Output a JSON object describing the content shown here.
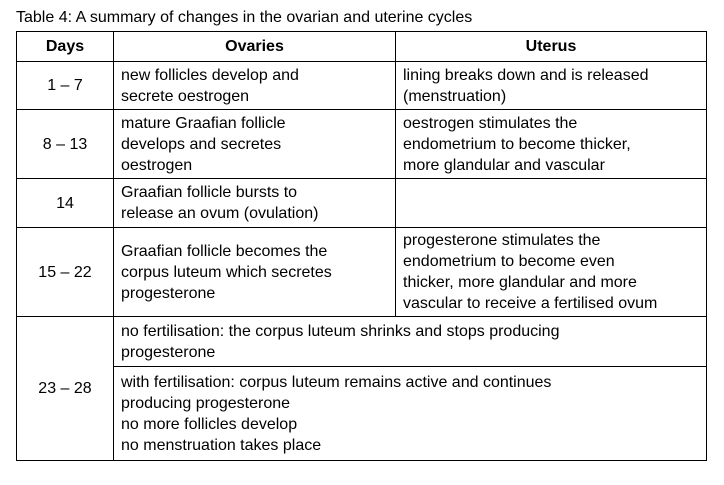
{
  "caption": "Table 4: A summary of changes in the ovarian and uterine cycles",
  "headers": {
    "days": "Days",
    "ovaries": "Ovaries",
    "uterus": "Uterus"
  },
  "rows": [
    {
      "days": "1 – 7",
      "ovaries": [
        "new follicles develop and",
        "secrete oestrogen"
      ],
      "uterus": [
        "lining breaks down and is released",
        "(menstruation)"
      ]
    },
    {
      "days": "8 – 13",
      "ovaries": [
        "mature Graafian follicle",
        "develops and secretes",
        "oestrogen"
      ],
      "uterus": [
        "oestrogen stimulates the",
        "endometrium to become thicker,",
        "more glandular and vascular"
      ]
    },
    {
      "days": "14",
      "ovaries": [
        "Graafian follicle bursts to",
        "release an ovum (ovulation)"
      ],
      "uterus": []
    },
    {
      "days": "15 – 22",
      "ovaries": [
        "Graafian follicle becomes the",
        "corpus luteum which secretes",
        "progesterone"
      ],
      "uterus": [
        "progesterone stimulates the",
        "endometrium to become even",
        "thicker, more glandular and more",
        "vascular to receive a fertilised ovum"
      ]
    },
    {
      "days": "23 – 28",
      "no_fertilisation": [
        "no fertilisation: the corpus luteum shrinks and stops producing",
        "progesterone"
      ],
      "with_fertilisation": [
        "with fertilisation: corpus luteum remains active and continues",
        "producing progesterone",
        "no more follicles develop",
        "no menstruation takes place"
      ]
    }
  ]
}
